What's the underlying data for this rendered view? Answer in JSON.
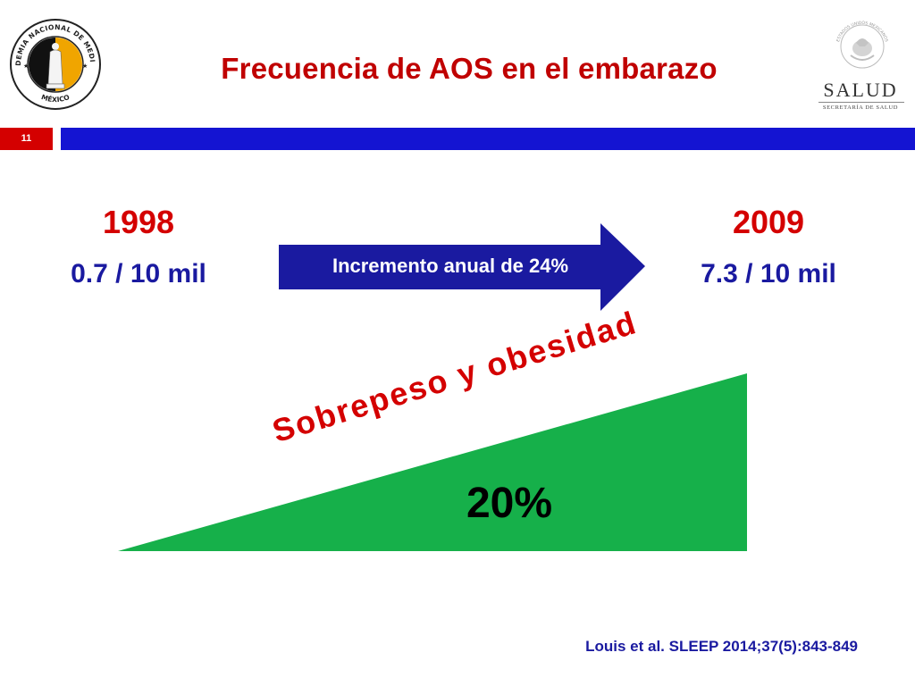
{
  "header": {
    "title": "Frecuencia de AOS en el embarazo",
    "left_logo": {
      "icon": "academia-nacional-de-medicina-seal-icon",
      "ring_text_top": "ACADEMIA NACIONAL DE MEDICINA",
      "ring_text_bottom": "MÉXICO"
    },
    "right_logo": {
      "icon": "mexican-coat-of-arms-icon",
      "ring_text": "ESTADOS UNIDOS MEXICANOS",
      "word": "SALUD",
      "subtitle": "SECRETARÍA DE SALUD"
    }
  },
  "slide_number": "11",
  "content": {
    "start_year": "1998",
    "start_rate": "0.7 / 10 mil",
    "arrow_label": "Incremento anual de 24%",
    "end_year": "2009",
    "end_rate": "7.3 / 10 mil",
    "triangle_label": "Sobrepeso y obesidad",
    "triangle_value": "20%"
  },
  "citation": "Louis et al. SLEEP 2014;37(5):843-849",
  "colors": {
    "title_red": "#c00000",
    "band_blue": "#1414d2",
    "number_box_red": "#d40000",
    "arrow_blue": "#1a1aa0",
    "triangle_green": "#16b04a",
    "value_blue": "#1a1aa0"
  }
}
